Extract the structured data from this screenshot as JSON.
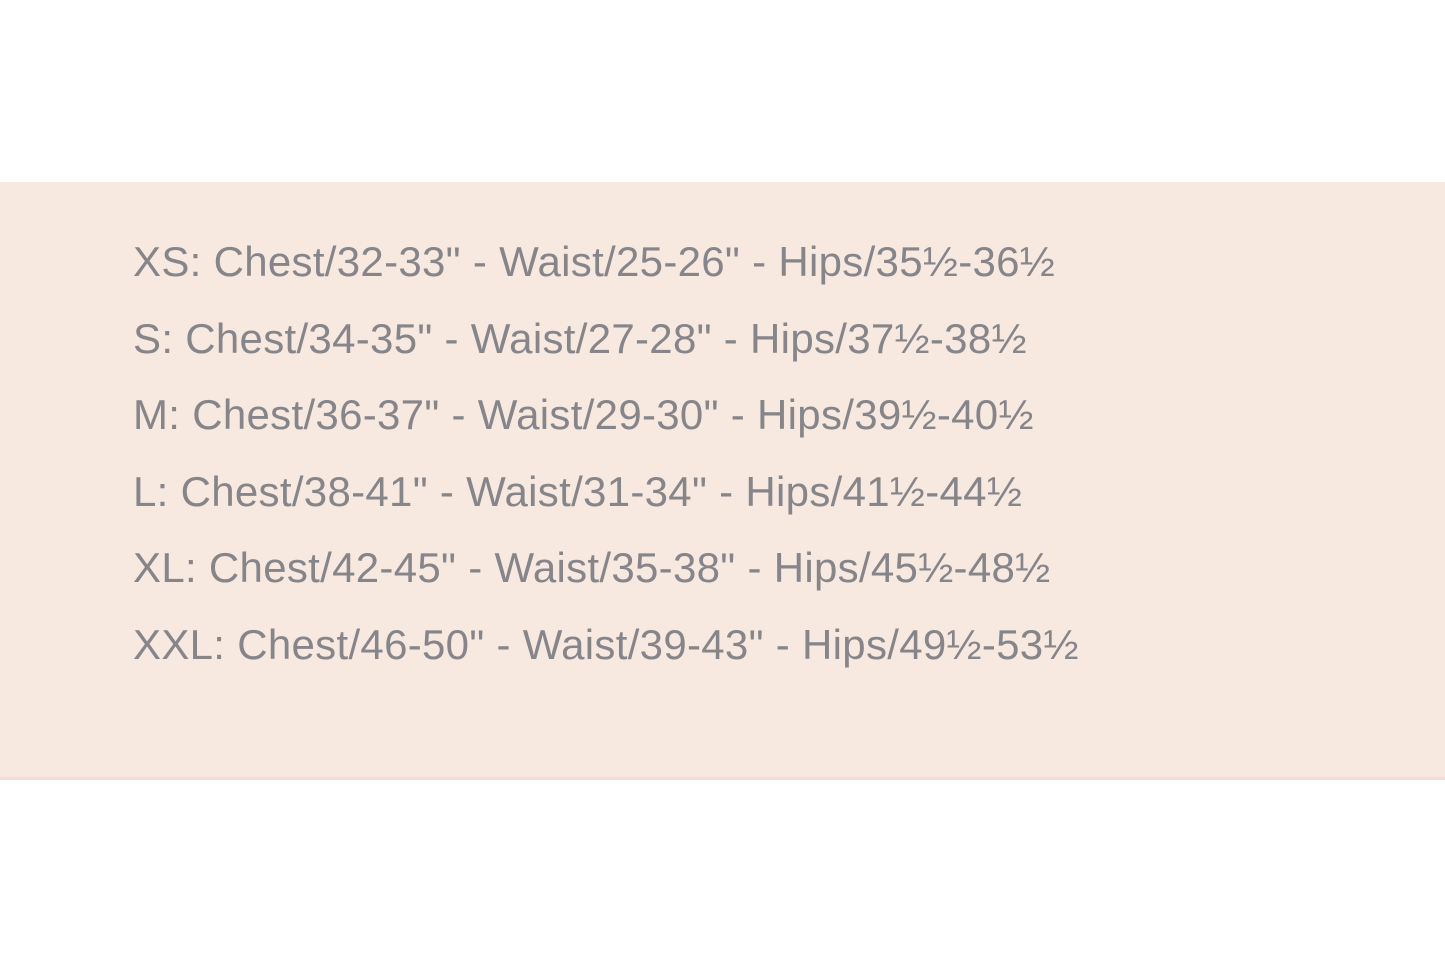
{
  "panel": {
    "background_color": "#f7e8e0",
    "text_color": "#85858a",
    "type": "size-chart"
  },
  "sizes": {
    "rows": [
      {
        "size": "XS",
        "chest": "32-33\"",
        "waist": "25-26\"",
        "hips": "35½-36½",
        "text": "XS: Chest/32-33\" - Waist/25-26\" - Hips/35½-36½"
      },
      {
        "size": "S",
        "chest": "34-35\"",
        "waist": "27-28\"",
        "hips": "37½-38½",
        "text": "S: Chest/34-35\" - Waist/27-28\" - Hips/37½-38½"
      },
      {
        "size": "M",
        "chest": "36-37\"",
        "waist": "29-30\"",
        "hips": "39½-40½",
        "text": "M: Chest/36-37\" - Waist/29-30\" - Hips/39½-40½"
      },
      {
        "size": "L",
        "chest": "38-41\"",
        "waist": "31-34\"",
        "hips": "41½-44½",
        "text": "L: Chest/38-41\" - Waist/31-34\" - Hips/41½-44½"
      },
      {
        "size": "XL",
        "chest": "42-45\"",
        "waist": "35-38\"",
        "hips": "45½-48½",
        "text": "XL: Chest/42-45\" - Waist/35-38\" - Hips/45½-48½"
      },
      {
        "size": "XXL",
        "chest": "46-50\"",
        "waist": "39-43\"",
        "hips": "49½-53½",
        "text": "XXL: Chest/46-50\" - Waist/39-43\" - Hips/49½-53½"
      }
    ]
  }
}
